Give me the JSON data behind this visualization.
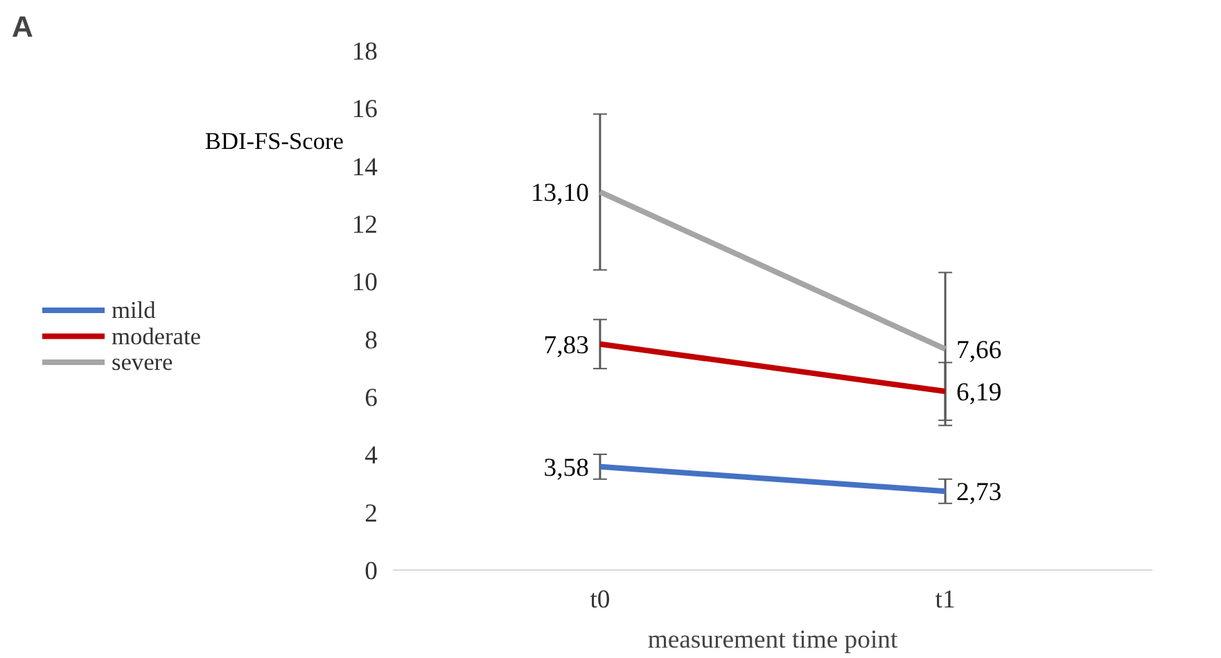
{
  "chart_data": {
    "type": "line",
    "title": "A",
    "ylabel": "BDI-FS-Score",
    "xlabel": "measurement time point",
    "categories": [
      "t0",
      "t1"
    ],
    "series": [
      {
        "name": "mild",
        "color": "#4472c4",
        "values": [
          3.58,
          2.73
        ],
        "errors": [
          0.43,
          0.42
        ],
        "value_labels": [
          "3,58",
          "2,73"
        ]
      },
      {
        "name": "moderate",
        "color": "#c00000",
        "values": [
          7.83,
          6.19
        ],
        "errors": [
          0.85,
          1.0
        ],
        "value_labels": [
          "7,83",
          "6,19"
        ]
      },
      {
        "name": "severe",
        "color": "#a5a5a5",
        "values": [
          13.1,
          7.66
        ],
        "errors": [
          2.7,
          2.65
        ],
        "value_labels": [
          "13,10",
          "7,66"
        ]
      }
    ],
    "ylim": [
      0,
      18
    ],
    "yticks": [
      0,
      2,
      4,
      6,
      8,
      10,
      12,
      14,
      16,
      18
    ],
    "grid": false,
    "legend": "left",
    "marker": "none",
    "line_style": "solid"
  }
}
